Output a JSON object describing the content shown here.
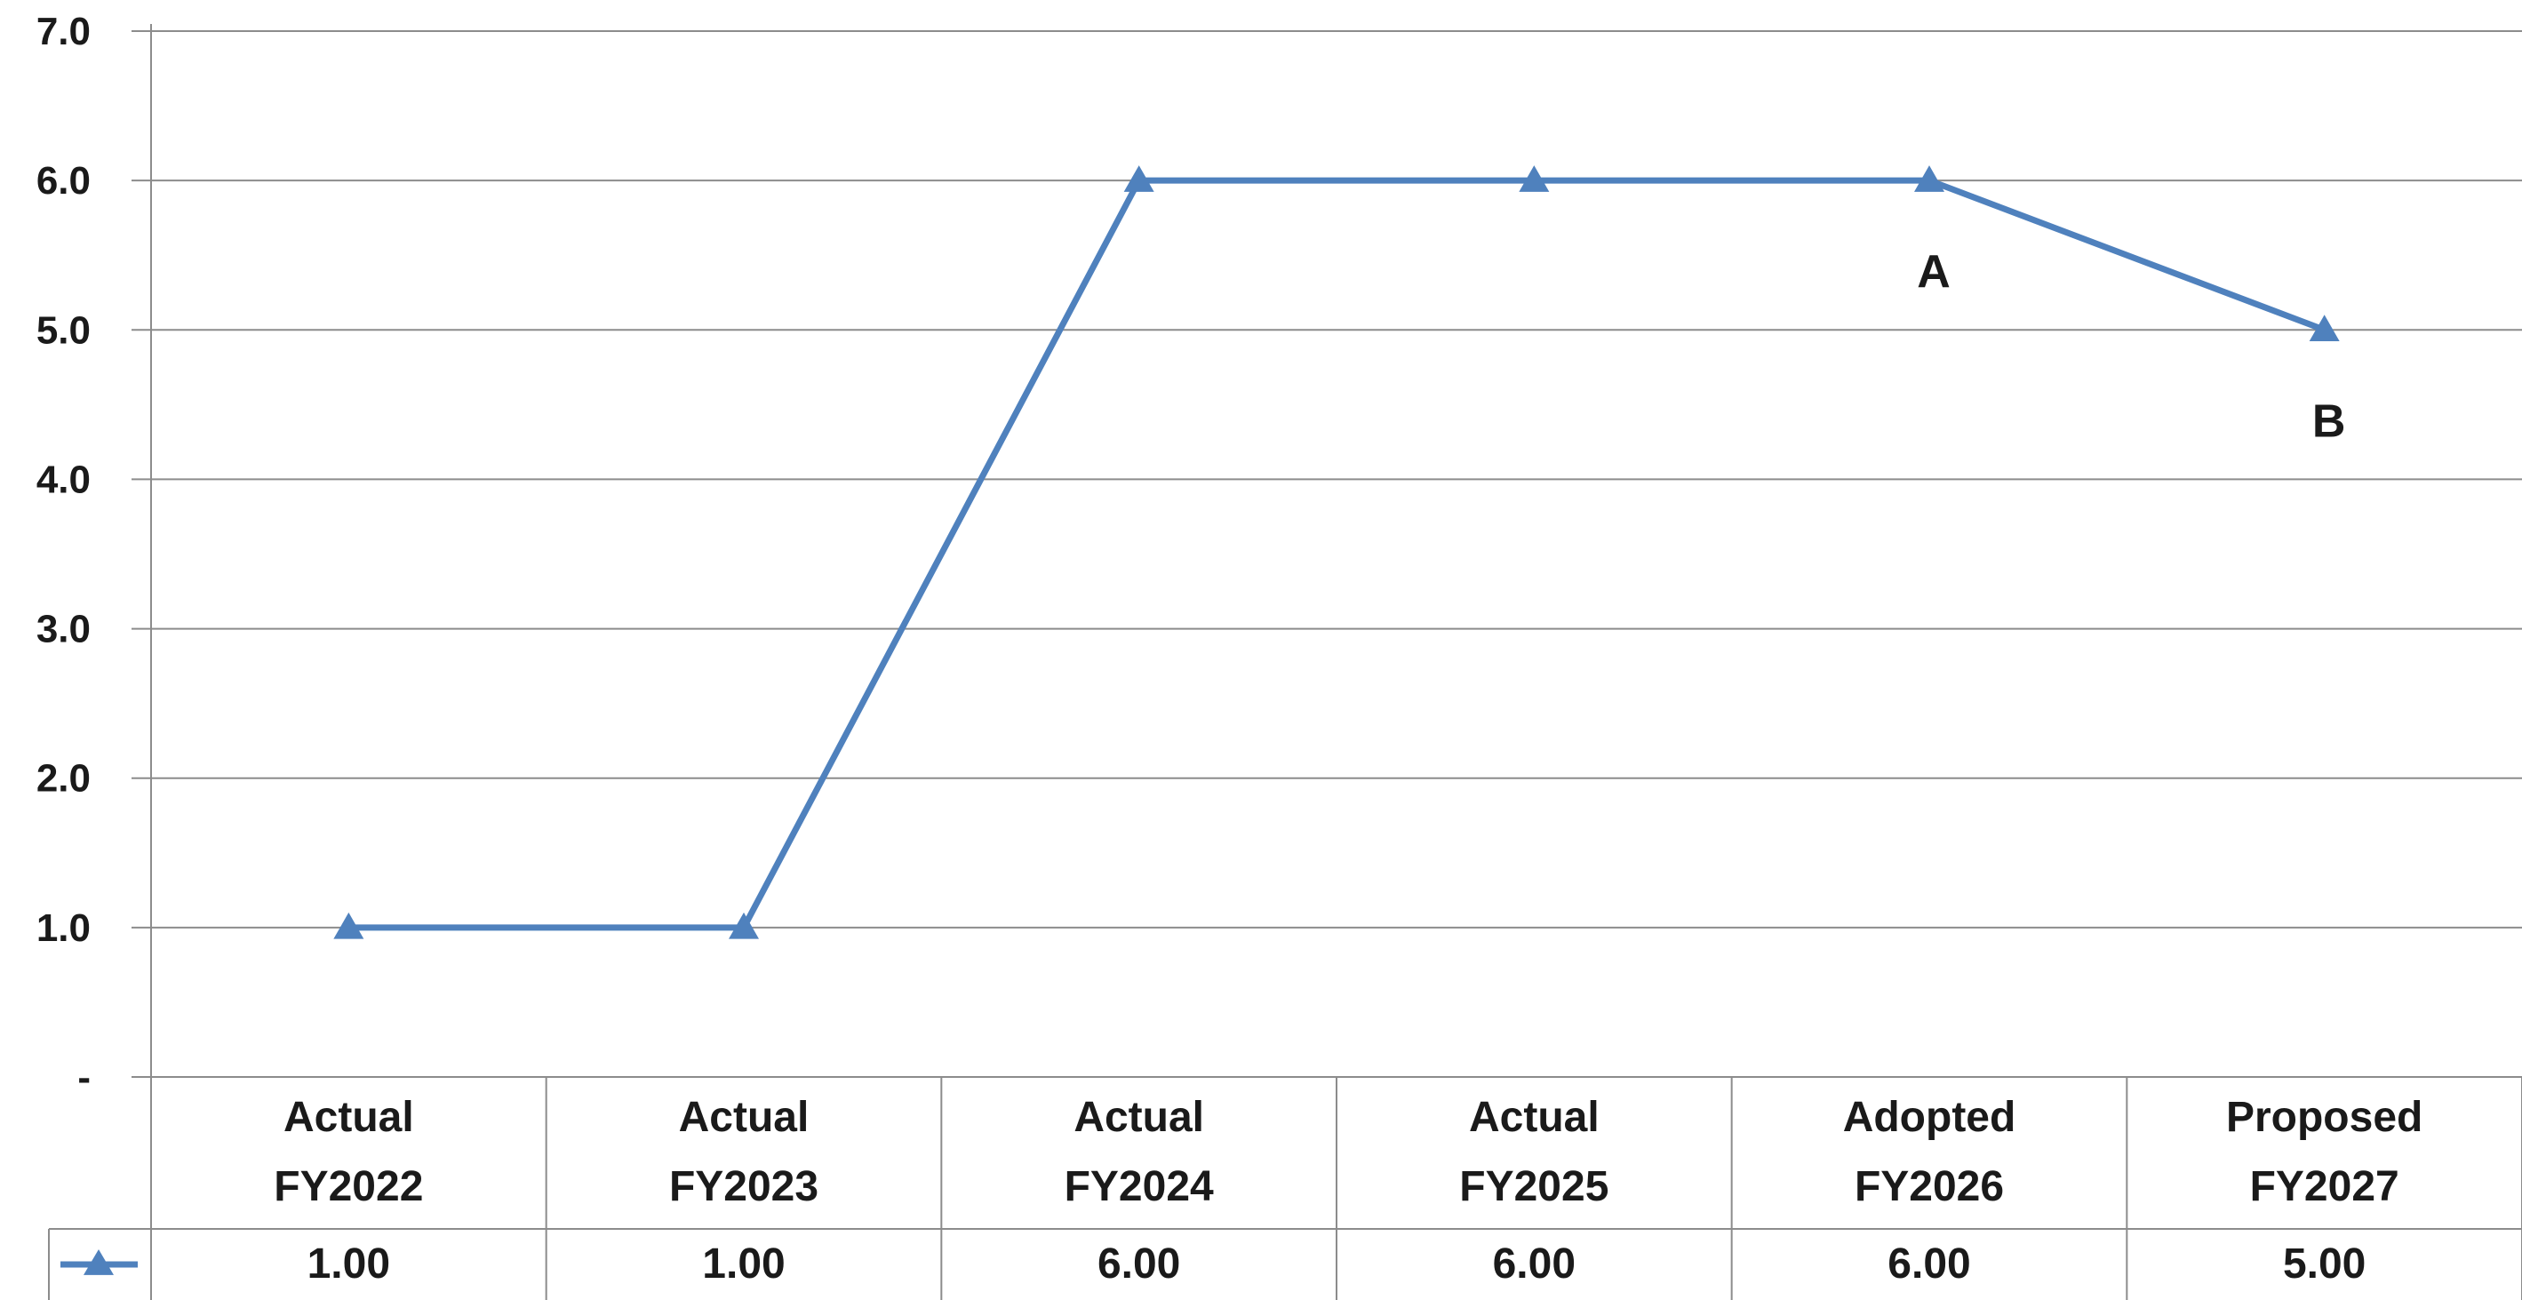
{
  "chart_data": {
    "type": "line",
    "categories": [
      [
        "Actual",
        "FY2022"
      ],
      [
        "Actual",
        "FY2023"
      ],
      [
        "Actual",
        "FY2024"
      ],
      [
        "Actual",
        "FY2025"
      ],
      [
        "Adopted",
        "FY2026"
      ],
      [
        "Proposed",
        "FY2027"
      ]
    ],
    "series": [
      {
        "values": [
          1.0,
          1.0,
          6.0,
          6.0,
          6.0,
          5.0
        ],
        "color": "#4f81bd",
        "marker": "triangle"
      }
    ],
    "data_table_values": [
      "1.00",
      "1.00",
      "6.00",
      "6.00",
      "6.00",
      "5.00"
    ],
    "ylim": [
      0,
      7
    ],
    "yticks": [
      {
        "value": 0,
        "label": "-"
      },
      {
        "value": 1,
        "label": "1.0"
      },
      {
        "value": 2,
        "label": "2.0"
      },
      {
        "value": 3,
        "label": "3.0"
      },
      {
        "value": 4,
        "label": "4.0"
      },
      {
        "value": 5,
        "label": "5.0"
      },
      {
        "value": 6,
        "label": "6.0"
      },
      {
        "value": 7,
        "label": "7.0"
      }
    ],
    "annotations": [
      {
        "text": "A",
        "category_index": 4
      },
      {
        "text": "B",
        "category_index": 5
      }
    ],
    "grid": true,
    "title": "",
    "xlabel": "",
    "ylabel": ""
  }
}
